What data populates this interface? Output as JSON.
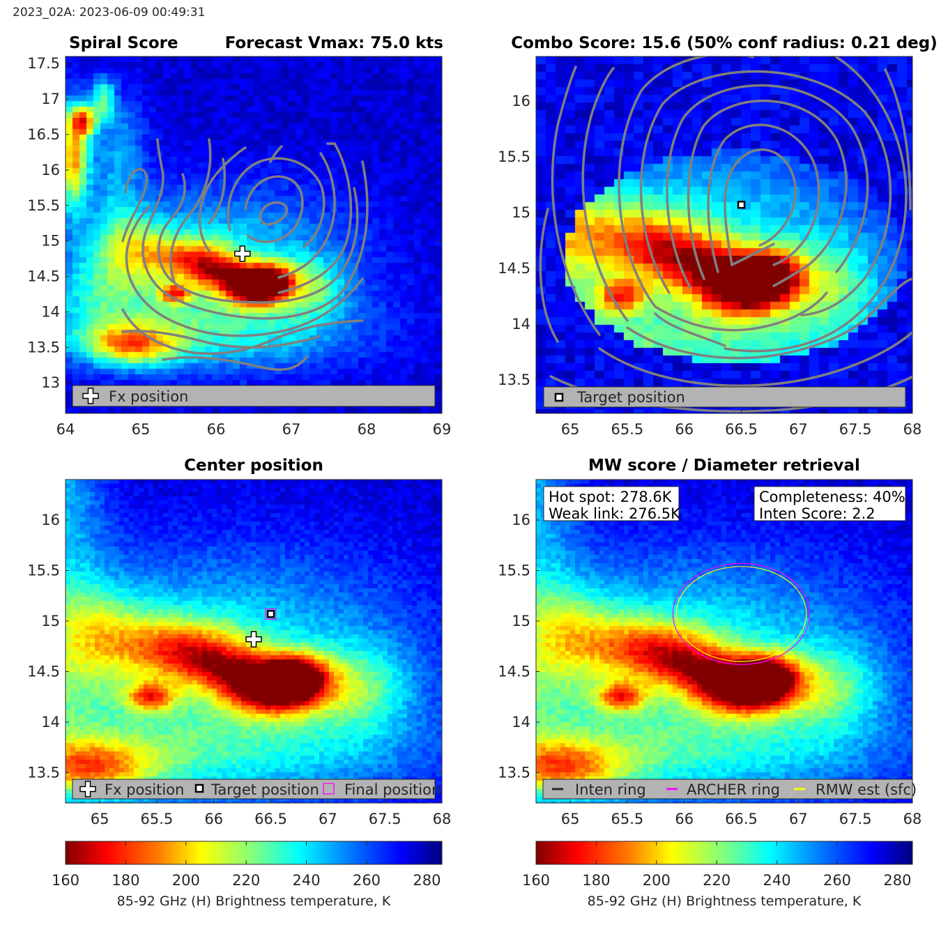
{
  "header": "2023_02A: 2023-06-09 00:49:31",
  "colors": {
    "contour": "#808080",
    "legend_bg": "#b3b3b3",
    "frame": "#262626",
    "archer": "#ff00ff",
    "rmw": "#ffff00"
  },
  "chart_data": [
    {
      "id": "spiral",
      "type": "heatmap",
      "title_left": "Spiral Score",
      "title_right": "Forecast Vmax: 75.0 kts",
      "xlim": [
        64,
        69
      ],
      "ylim": [
        12.57,
        17.6
      ],
      "xticks": [
        "64",
        "65",
        "66",
        "67",
        "68",
        "69"
      ],
      "yticks": [
        "13",
        "13.5",
        "14",
        "14.5",
        "15",
        "15.5",
        "16",
        "16.5",
        "17",
        "17.5"
      ],
      "markers": [
        {
          "kind": "plus",
          "x": 66.35,
          "y": 14.82
        }
      ],
      "legend": [
        "Fx position"
      ]
    },
    {
      "id": "combo",
      "type": "heatmap",
      "title": "Combo Score: 15.6  (50% conf radius: 0.21 deg)",
      "xlim": [
        64.7,
        68
      ],
      "ylim": [
        13.2,
        16.4
      ],
      "xticks": [
        "65",
        "65.5",
        "66",
        "66.5",
        "67",
        "67.5",
        "68"
      ],
      "yticks": [
        "13.5",
        "14",
        "14.5",
        "15",
        "15.5",
        "16"
      ],
      "markers": [
        {
          "kind": "square",
          "x": 66.5,
          "y": 15.07
        }
      ],
      "legend": [
        "Target position"
      ]
    },
    {
      "id": "center",
      "type": "heatmap",
      "title": "Center position",
      "xlim": [
        64.7,
        68
      ],
      "ylim": [
        13.2,
        16.4
      ],
      "xticks": [
        "65",
        "65.5",
        "66",
        "66.5",
        "67",
        "67.5",
        "68"
      ],
      "yticks": [
        "13.5",
        "14",
        "14.5",
        "15",
        "15.5",
        "16"
      ],
      "markers": [
        {
          "kind": "plus",
          "x": 66.35,
          "y": 14.82
        },
        {
          "kind": "square",
          "x": 66.5,
          "y": 15.07
        }
      ],
      "legend": [
        "Fx position",
        "Target position",
        "Final position"
      ]
    },
    {
      "id": "mw",
      "type": "heatmap",
      "title": "MW score / Diameter retrieval",
      "xlim": [
        64.7,
        68
      ],
      "ylim": [
        13.2,
        16.4
      ],
      "xticks": [
        "65",
        "65.5",
        "66",
        "66.5",
        "67",
        "67.5",
        "68"
      ],
      "yticks": [
        "13.5",
        "14",
        "14.5",
        "15",
        "15.5",
        "16"
      ],
      "box_left": [
        "Hot spot: 278.6K",
        "Weak link: 276.5K"
      ],
      "box_right": [
        "Completeness: 40%",
        "Inten Score: 2.2"
      ],
      "rings": [
        {
          "name": "ARCHER ring",
          "cx": 66.5,
          "cy": 15.07,
          "rx_deg": 0.6,
          "ry_deg": 0.5
        },
        {
          "name": "RMW est (sfc)",
          "cx": 66.5,
          "cy": 15.07,
          "rx_deg": 0.57,
          "ry_deg": 0.47
        }
      ],
      "legend": [
        "Inten ring",
        "ARCHER ring",
        "RMW est (sfc)"
      ]
    }
  ],
  "colorbar": {
    "min": 160,
    "max": 285,
    "ticks": [
      "160",
      "180",
      "200",
      "220",
      "240",
      "260",
      "280"
    ],
    "label": "85-92 GHz (H) Brightness temperature, K"
  }
}
